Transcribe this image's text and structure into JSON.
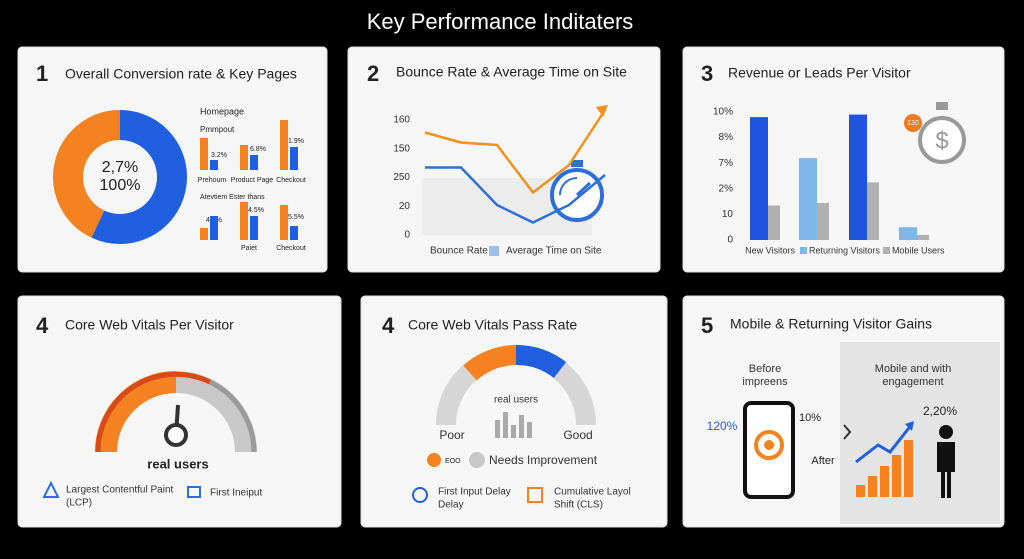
{
  "title": "Key Performance Inditaters",
  "panels": [
    {
      "number": "1",
      "title": "Overall Conversion rate & Key Pages",
      "donut": {
        "center": [
          "2,7%",
          "100%"
        ],
        "values": [
          57,
          43
        ],
        "colors": [
          "#1f5fe0",
          "#f58220"
        ]
      },
      "mini_bars": {
        "labels": [
          "Homepage",
          "Pmmpout",
          "Prehoum",
          "Product Page",
          "Checkout",
          "Atevtiem Ester thans",
          "Paiet",
          "Checkout"
        ],
        "value_labels": [
          "3.2%",
          "6.8%",
          "1.9%",
          "4.0%",
          "4.5%",
          "5.5%"
        ],
        "ylim": [
          0,
          10
        ],
        "groups": [
          {
            "orange": [
              6.4,
              5,
              10
            ],
            "blue": [
              2,
              3,
              4.6
            ]
          },
          {
            "orange": [
              2.4,
              7.6,
              7
            ],
            "blue": [
              4.8,
              4.8,
              2.8
            ]
          }
        ]
      }
    },
    {
      "number": "2",
      "title": "Bounce Rate & Average Time on Site",
      "chart": {
        "type": "line",
        "y_labels": [
          "160",
          "150",
          "250",
          "20",
          "0"
        ],
        "ylim": [
          0,
          10
        ],
        "series": [
          {
            "name": "Bounce Rate",
            "color": "#f0901e",
            "values": [
              8.2,
              7.4,
              7.2,
              3.4,
              5.6,
              10
            ]
          },
          {
            "name": "Average Time on Site",
            "color": "#2d6fd6",
            "values": [
              5.4,
              5.4,
              2.4,
              1.0,
              2.4,
              4.8
            ]
          }
        ]
      }
    },
    {
      "number": "3",
      "title": "Revenue or Leads Per Visitor",
      "badge": "130",
      "chart": {
        "type": "bar",
        "y_labels": [
          "10%",
          "8%",
          "7%",
          "2%",
          "10",
          "0"
        ],
        "ylim": [
          0,
          10
        ],
        "series": [
          {
            "name": "New Visitors",
            "color": "#1f55e0",
            "values": [
              9.6,
              null,
              9.8,
              null
            ]
          },
          {
            "name": "Returning Visitors",
            "color": "#7fb8e8",
            "values": [
              null,
              6.4,
              null,
              1.0
            ]
          },
          {
            "name": "Mobile Users",
            "color": "#b0b0b0",
            "values": [
              2.7,
              2.9,
              4.5,
              0.4
            ]
          }
        ]
      }
    },
    {
      "number": "4",
      "title": "Core Web Vitals Per Visitor",
      "gauge_label": "real users",
      "legend": [
        "Largest Contentful Paint",
        "(LCP)",
        "First Ineiput"
      ]
    },
    {
      "number": "4",
      "title": "Core Web Vitals Pass Rate",
      "gauge_label": "real users",
      "left": "Poor",
      "right": "Good",
      "legend": [
        "EOO",
        "Needs Improvement",
        "First Input Delay",
        "Delay",
        "Cumulative Layol",
        "Shift (CLS)"
      ]
    },
    {
      "number": "5",
      "title": "Mobile & Returning Visitor Gains",
      "texts": [
        "Before",
        "impreens",
        "Mobile and with",
        "engagement",
        "120%",
        "10%",
        "After",
        "2,20%"
      ]
    }
  ]
}
